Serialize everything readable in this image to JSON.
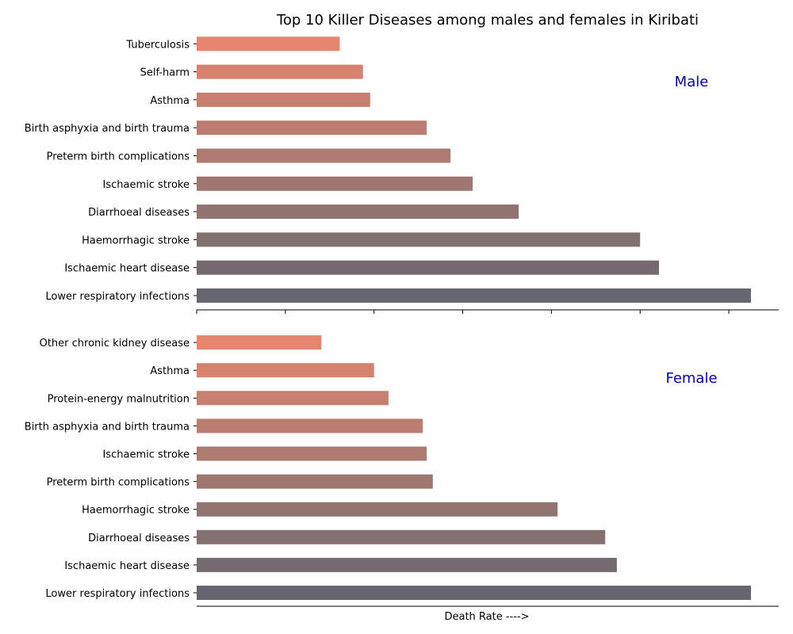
{
  "chart_data": {
    "type": "bar",
    "orientation": "horizontal",
    "title": "Top 10 Killer Diseases among males and females in Kiribati",
    "xlabel": "Death Rate ---->",
    "xlim": [
      0,
      1.05
    ],
    "x_tick_labels": false,
    "grid": false,
    "label_color": "#0000CD",
    "bar_colors": [
      "#666670",
      "#756a70",
      "#837070",
      "#917470",
      "#a0776f",
      "#ad7b6f",
      "#ba7d6f",
      "#c7806f",
      "#d5836f",
      "#e3856f",
      "#f0886f"
    ],
    "panels": [
      {
        "label": "Male",
        "categories": [
          "Lower respiratory infections",
          "Ischaemic heart disease",
          "Haemorrhagic stroke",
          "Diarrhoeal diseases",
          "Ischaemic stroke",
          "Preterm birth complications",
          "Birth asphyxia and birth trauma",
          "Asthma",
          "Self-harm",
          "Tuberculosis"
        ],
        "values": [
          1.0,
          0.834,
          0.8,
          0.581,
          0.498,
          0.458,
          0.415,
          0.313,
          0.3,
          0.258
        ]
      },
      {
        "label": "Female",
        "categories": [
          "Lower respiratory infections",
          "Ischaemic heart disease",
          "Diarrhoeal diseases",
          "Haemorrhagic stroke",
          "Preterm birth complications",
          "Ischaemic stroke",
          "Birth asphyxia and birth trauma",
          "Protein-energy malnutrition",
          "Asthma",
          "Other chronic kidney disease"
        ],
        "values": [
          1.0,
          0.758,
          0.737,
          0.651,
          0.426,
          0.415,
          0.408,
          0.346,
          0.32,
          0.225
        ]
      }
    ]
  }
}
